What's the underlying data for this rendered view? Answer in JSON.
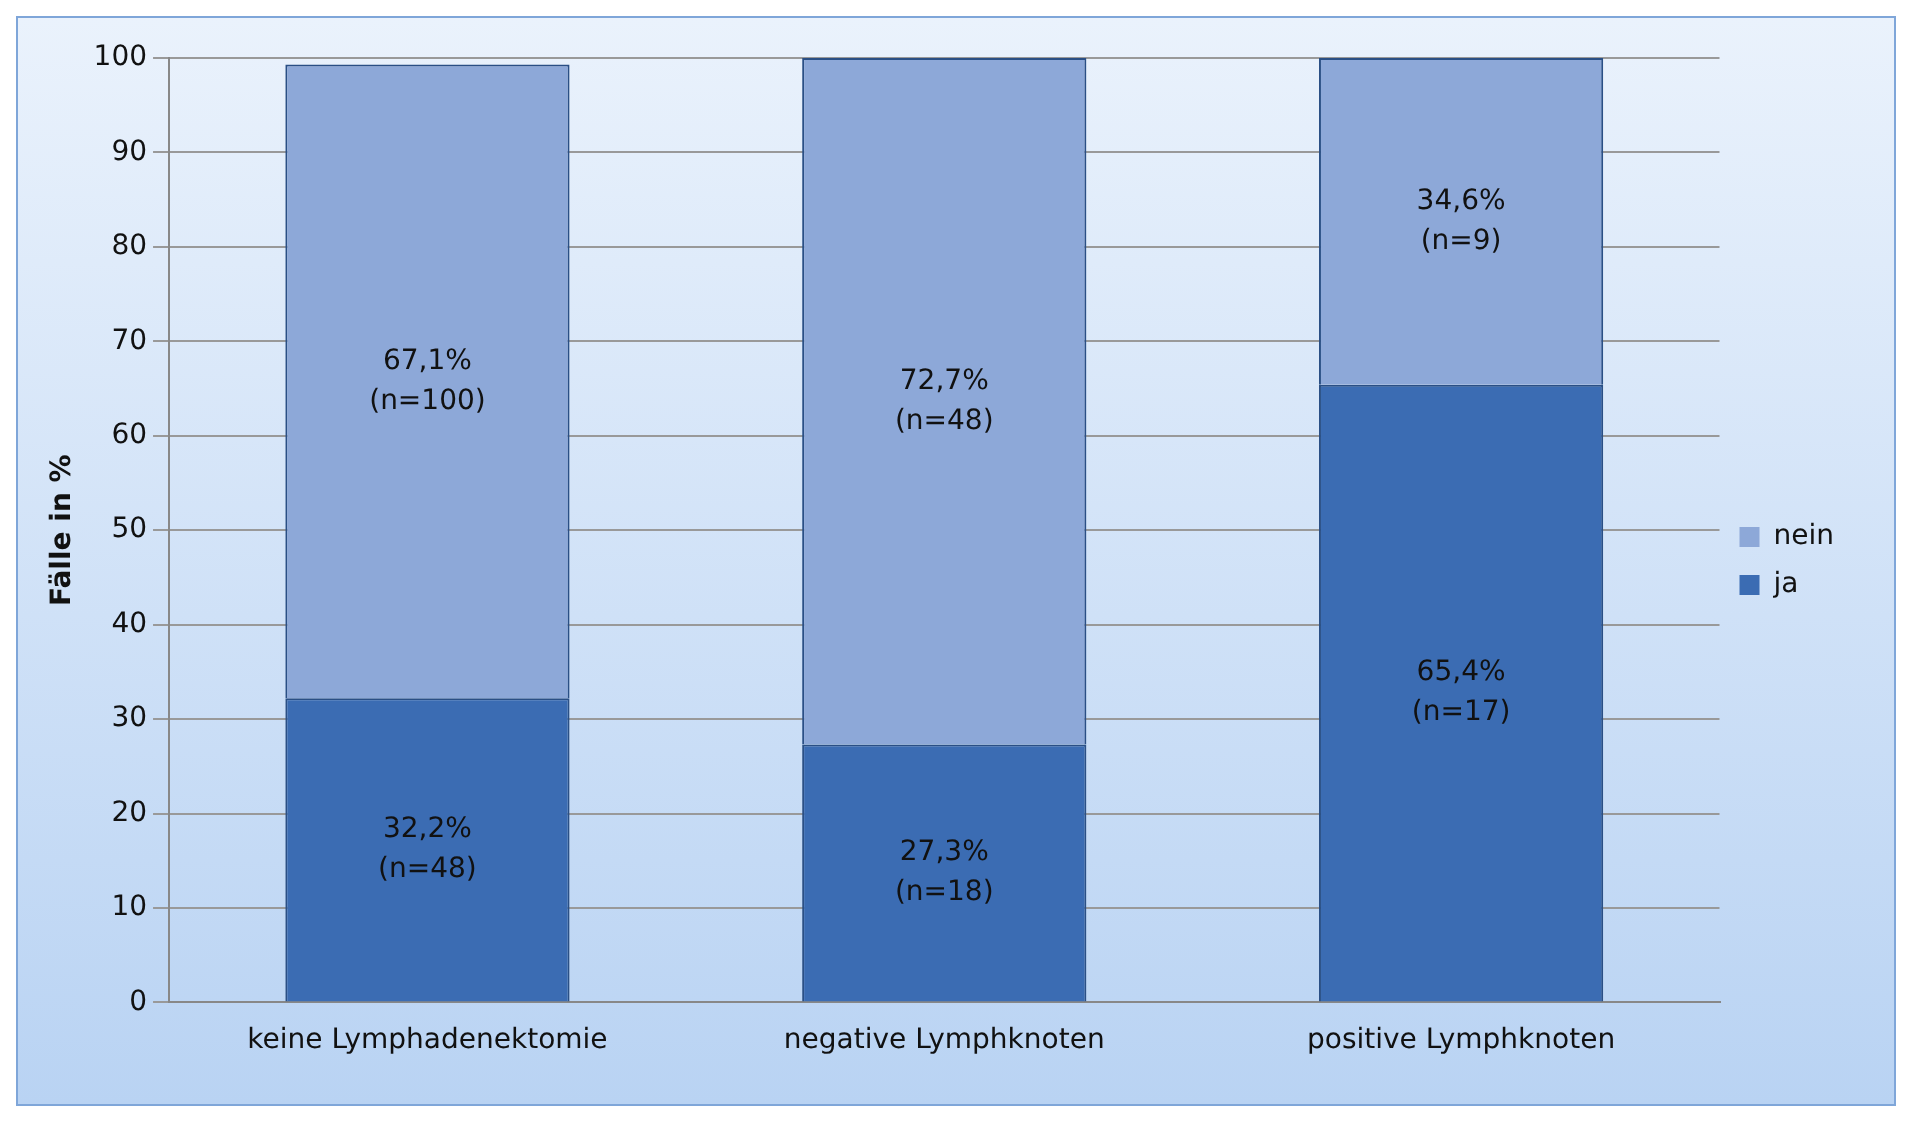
{
  "chart_data": {
    "type": "bar",
    "stacked": true,
    "ylabel": "Fälle in %",
    "categories": [
      "keine Lymphadenektomie",
      "negative Lymphknoten",
      "positive Lymphknoten"
    ],
    "series": [
      {
        "name": "ja",
        "color": "#3b6cb3",
        "values": [
          32.2,
          27.3,
          65.4
        ],
        "value_labels": [
          "32,2%\n(n=48)",
          "27,3%\n(n=18)",
          "65,4%\n(n=17)"
        ]
      },
      {
        "name": "nein",
        "color": "#8da8d8",
        "values": [
          67.1,
          72.7,
          34.6
        ],
        "value_labels": [
          "67,1%\n(n=100)",
          "72,7%\n(n=48)",
          "34,6%\n(n=9)"
        ]
      }
    ],
    "ylim": [
      0,
      100
    ],
    "yticks": [
      0,
      10,
      20,
      30,
      40,
      50,
      60,
      70,
      80,
      90,
      100
    ],
    "grid": "y",
    "legend": "right"
  }
}
